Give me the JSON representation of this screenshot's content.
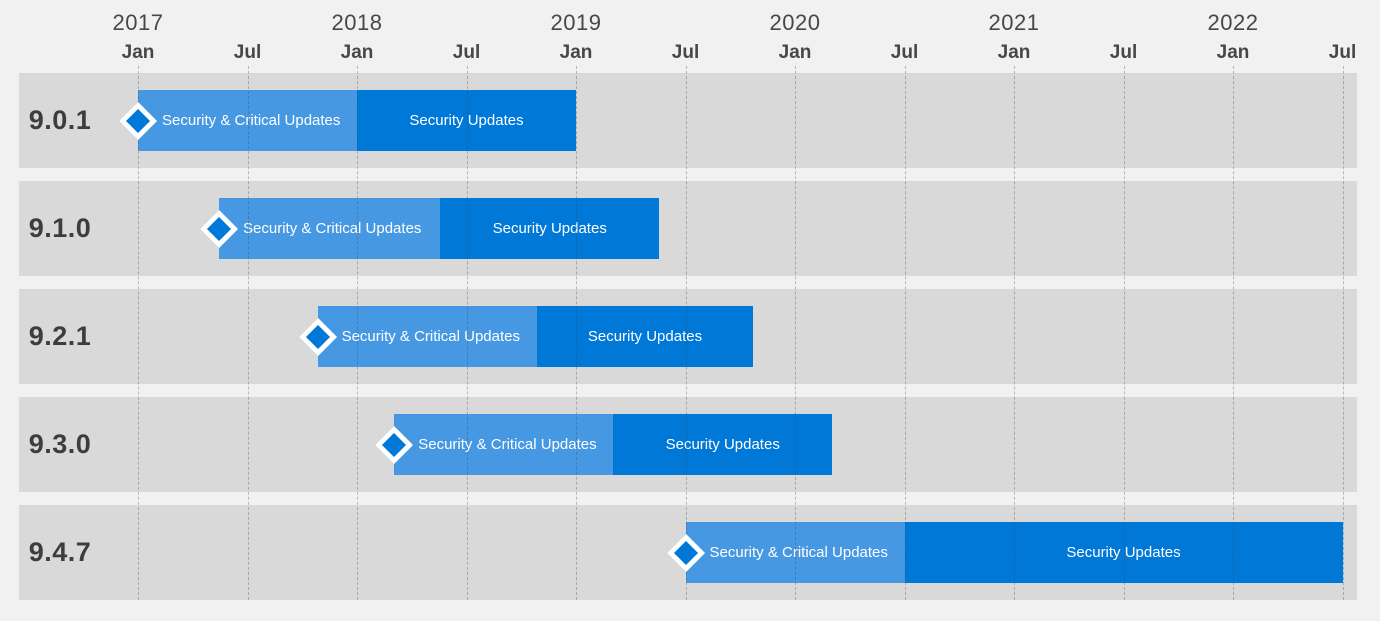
{
  "chart_data": {
    "type": "gantt",
    "description": "Product version support lifecycle timeline",
    "axis": {
      "position": "top",
      "xlim_years": [
        2016.46,
        2022.57
      ],
      "grid": "dashed-vertical",
      "years": [
        {
          "label": "2017",
          "x": 2017.0
        },
        {
          "label": "2018",
          "x": 2018.0
        },
        {
          "label": "2019",
          "x": 2019.0
        },
        {
          "label": "2020",
          "x": 2020.0
        },
        {
          "label": "2021",
          "x": 2021.0
        },
        {
          "label": "2022",
          "x": 2022.0
        }
      ],
      "months": [
        {
          "label": "Jan",
          "x": 2017.0
        },
        {
          "label": "Jul",
          "x": 2017.5
        },
        {
          "label": "Jan",
          "x": 2018.0
        },
        {
          "label": "Jul",
          "x": 2018.5
        },
        {
          "label": "Jan",
          "x": 2019.0
        },
        {
          "label": "Jul",
          "x": 2019.5
        },
        {
          "label": "Jan",
          "x": 2020.0
        },
        {
          "label": "Jul",
          "x": 2020.5
        },
        {
          "label": "Jan",
          "x": 2021.0
        },
        {
          "label": "Jul",
          "x": 2021.5
        },
        {
          "label": "Jan",
          "x": 2022.0
        },
        {
          "label": "Jul",
          "x": 2022.5
        }
      ]
    },
    "phase_labels": {
      "phase1": "Security & Critical Updates",
      "phase2": "Security Updates"
    },
    "rows": [
      {
        "version": "9.0.1",
        "release": "2017-01",
        "phase1_start": 2017.0,
        "phase1_end": 2018.0,
        "phase2_end": 2019.0
      },
      {
        "version": "9.1.0",
        "release": "2017-05",
        "phase1_start": 2017.37,
        "phase1_end": 2018.38,
        "phase2_end": 2019.38
      },
      {
        "version": "9.2.1",
        "release": "2017-11",
        "phase1_start": 2017.82,
        "phase1_end": 2018.82,
        "phase2_end": 2019.81
      },
      {
        "version": "9.3.0",
        "release": "2018-03",
        "phase1_start": 2018.17,
        "phase1_end": 2019.17,
        "phase2_end": 2020.17
      },
      {
        "version": "9.4.7",
        "release": "2019-07",
        "phase1_start": 2019.5,
        "phase1_end": 2020.5,
        "phase2_end": 2022.5
      }
    ],
    "colors": {
      "phase1": "#4698e3",
      "phase2": "#0078d7",
      "marker_fill": "#0078d7",
      "marker_border": "#ffffff",
      "band": "#d9d9d9",
      "background": "#f1f1f2",
      "gridline": "#a9a9a9",
      "axis_text": "#474747",
      "version_text": "#3d3d3d",
      "bar_text": "#ffffff"
    }
  }
}
